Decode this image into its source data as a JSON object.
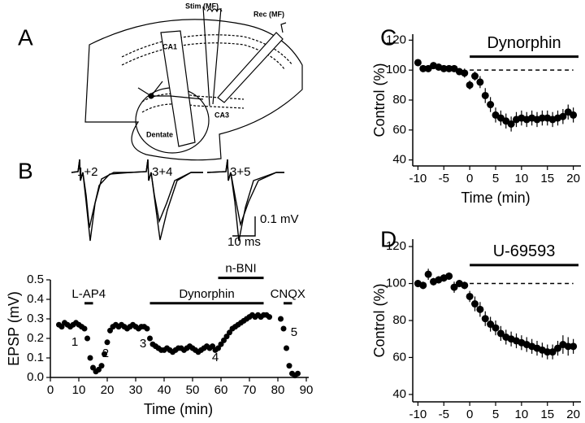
{
  "diagram": {
    "label": "A",
    "stim": "Stim (MF)",
    "rec": "Rec (MF)",
    "ca1": "CA1",
    "ca3": "CA3",
    "dentate": "Dentate"
  },
  "traces": {
    "label": "B",
    "labels": [
      "1+2",
      "3+4",
      "3+5"
    ],
    "scale_voltage": "0.1 mV",
    "scale_time": "10 ms"
  },
  "chart_data": [
    {
      "type": "scatter",
      "xlabel": "Time (min)",
      "ylabel": "EPSP (mV)",
      "x": [
        3,
        4,
        5,
        6,
        7,
        8,
        9,
        10,
        11,
        12,
        13,
        14,
        15,
        16,
        17,
        18,
        19,
        20,
        21,
        22,
        23,
        24,
        25,
        26,
        27,
        28,
        29,
        30,
        31,
        32,
        33,
        34,
        35,
        36,
        37,
        38,
        39,
        40,
        41,
        42,
        43,
        44,
        45,
        46,
        47,
        48,
        49,
        50,
        51,
        52,
        53,
        54,
        55,
        56,
        57,
        58,
        59,
        60,
        61,
        62,
        63,
        64,
        65,
        66,
        67,
        68,
        69,
        70,
        71,
        72,
        73,
        74,
        75,
        76,
        77,
        81,
        82,
        83,
        84,
        85,
        86,
        87
      ],
      "values": [
        0.27,
        0.26,
        0.28,
        0.27,
        0.26,
        0.27,
        0.28,
        0.27,
        0.26,
        0.25,
        0.2,
        0.1,
        0.05,
        0.03,
        0.04,
        0.06,
        0.12,
        0.18,
        0.24,
        0.26,
        0.27,
        0.26,
        0.27,
        0.26,
        0.25,
        0.26,
        0.27,
        0.26,
        0.25,
        0.26,
        0.26,
        0.25,
        0.2,
        0.17,
        0.16,
        0.15,
        0.14,
        0.14,
        0.15,
        0.14,
        0.13,
        0.14,
        0.15,
        0.15,
        0.14,
        0.15,
        0.16,
        0.15,
        0.14,
        0.13,
        0.14,
        0.15,
        0.16,
        0.15,
        0.16,
        0.14,
        0.15,
        0.17,
        0.19,
        0.21,
        0.23,
        0.25,
        0.26,
        0.27,
        0.28,
        0.29,
        0.3,
        0.31,
        0.32,
        0.31,
        0.32,
        0.31,
        0.32,
        0.32,
        0.31,
        0.3,
        0.25,
        0.15,
        0.06,
        0.02,
        0.01,
        0.02
      ],
      "xlim": [
        0,
        90
      ],
      "ylim": [
        0,
        0.5
      ],
      "xticks": [
        0,
        10,
        20,
        30,
        40,
        50,
        60,
        70,
        80,
        90
      ],
      "yticks": [
        {
          "value": 0,
          "label": "0.0"
        },
        0.1,
        0.2,
        0.3,
        0.4,
        0.5
      ],
      "bars": [
        {
          "label": "L-AP4",
          "x": [
            12,
            15
          ],
          "y": 0.38
        },
        {
          "label": "Dynorphin",
          "x": [
            35,
            75
          ],
          "y": 0.38
        },
        {
          "label": "n-BNI",
          "x": [
            59,
            75
          ],
          "y": 0.51
        },
        {
          "label": "CNQX",
          "x": [
            82,
            85
          ],
          "y": 0.38
        }
      ],
      "annotations": [
        {
          "text": "1",
          "x": 8.6,
          "y": 0.18
        },
        {
          "text": "2",
          "x": 19.4,
          "y": 0.12
        },
        {
          "text": "3",
          "x": 32.6,
          "y": 0.17
        },
        {
          "text": "4",
          "x": 58,
          "y": 0.1
        },
        {
          "text": "5",
          "x": 85.7,
          "y": 0.23
        }
      ]
    },
    {
      "type": "scatter",
      "label": "C",
      "xlabel": "Time (min)",
      "ylabel": "Control (%)",
      "x": [
        -10,
        -9,
        -8,
        -7,
        -6,
        -5,
        -4,
        -3,
        -2,
        -1,
        0,
        1,
        2,
        3,
        4,
        5,
        6,
        7,
        8,
        9,
        10,
        11,
        12,
        13,
        14,
        15,
        16,
        17,
        18,
        19,
        20
      ],
      "values": [
        105,
        101,
        101,
        103,
        102,
        101,
        101,
        101,
        99,
        98,
        90,
        96,
        92,
        83,
        77,
        70,
        68,
        66,
        64,
        67,
        68,
        67,
        68,
        67,
        68,
        68,
        67,
        68,
        69,
        72,
        70
      ],
      "errors": [
        2,
        2,
        2,
        2,
        2,
        2,
        2,
        2,
        2,
        3,
        3,
        3,
        4,
        5,
        5,
        5,
        5,
        5,
        5,
        5,
        5,
        5,
        5,
        5,
        5,
        5,
        5,
        5,
        5,
        5,
        5
      ],
      "xlim": [
        -11,
        21
      ],
      "ylim": [
        36,
        124
      ],
      "xticks": [
        -10,
        -5,
        0,
        5,
        10,
        15,
        20
      ],
      "yticks": [
        40,
        60,
        80,
        100,
        120
      ],
      "reference": {
        "y": 100,
        "x": [
          0,
          20
        ]
      },
      "bars": [
        {
          "label": "Dynorphin",
          "x": [
            0,
            21
          ],
          "y": 109
        }
      ]
    },
    {
      "type": "scatter",
      "label": "D",
      "xlabel": "Time (min)",
      "ylabel": "Control (%)",
      "x": [
        -10,
        -9,
        -8,
        -7,
        -6,
        -5,
        -4,
        -3,
        -2,
        -1,
        0,
        1,
        2,
        3,
        4,
        5,
        6,
        7,
        8,
        9,
        10,
        11,
        12,
        13,
        14,
        15,
        16,
        17,
        18,
        19,
        20
      ],
      "values": [
        100,
        99,
        105,
        101,
        102,
        103,
        104,
        98,
        100,
        99,
        93,
        89,
        86,
        81,
        78,
        76,
        73,
        71,
        70,
        69,
        68,
        67,
        66,
        65,
        64,
        63,
        63,
        65,
        67,
        66,
        66
      ],
      "errors": [
        2,
        2,
        3,
        2,
        2,
        2,
        2,
        3,
        2,
        2,
        3,
        4,
        4,
        4,
        4,
        4,
        4,
        4,
        4,
        4,
        4,
        4,
        4,
        4,
        4,
        4,
        4,
        4,
        5,
        5,
        4
      ],
      "xlim": [
        -11,
        21
      ],
      "ylim": [
        36,
        124
      ],
      "xticks": [
        -10,
        -5,
        0,
        5,
        10,
        15,
        20
      ],
      "yticks": [
        40,
        60,
        80,
        100,
        120
      ],
      "reference": {
        "y": 100,
        "x": [
          0,
          20
        ]
      },
      "bars": [
        {
          "label": "U-69593",
          "x": [
            0,
            21
          ],
          "y": 110
        }
      ]
    }
  ]
}
